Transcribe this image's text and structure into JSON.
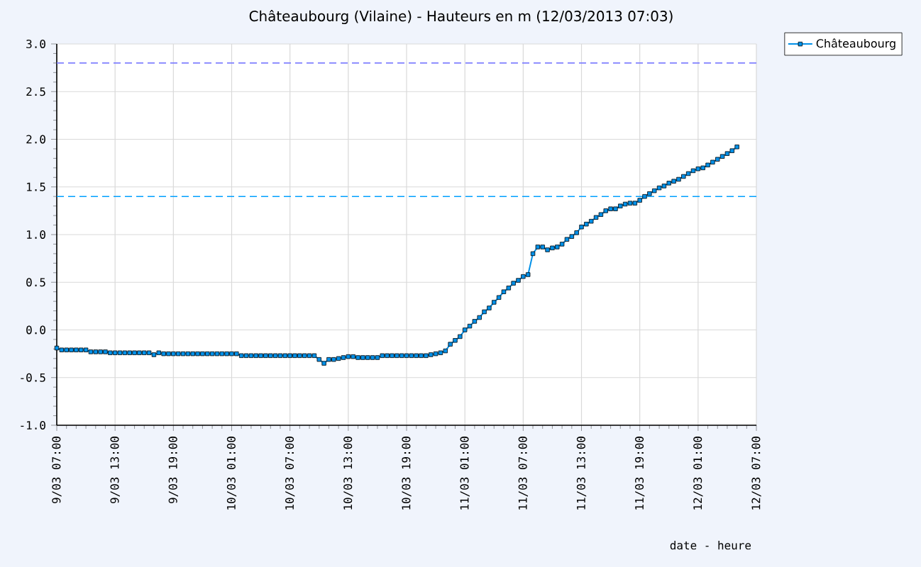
{
  "chart_data": {
    "type": "line",
    "title": "Châteaubourg (Vilaine) - Hauteurs en m (12/03/2013 07:03)",
    "xlabel": "date - heure",
    "x": [
      "2013-03-09T07:00",
      "2013-03-09T07:30",
      "2013-03-09T08:00",
      "2013-03-09T08:30",
      "2013-03-09T09:00",
      "2013-03-09T09:30",
      "2013-03-09T10:00",
      "2013-03-09T10:30",
      "2013-03-09T11:00",
      "2013-03-09T11:30",
      "2013-03-09T12:00",
      "2013-03-09T12:30",
      "2013-03-09T13:00",
      "2013-03-09T13:30",
      "2013-03-09T14:00",
      "2013-03-09T14:30",
      "2013-03-09T15:00",
      "2013-03-09T15:30",
      "2013-03-09T16:00",
      "2013-03-09T16:30",
      "2013-03-09T17:00",
      "2013-03-09T17:30",
      "2013-03-09T18:00",
      "2013-03-09T18:30",
      "2013-03-09T19:00",
      "2013-03-09T19:30",
      "2013-03-09T20:00",
      "2013-03-09T20:30",
      "2013-03-09T21:00",
      "2013-03-09T21:30",
      "2013-03-09T22:00",
      "2013-03-09T22:30",
      "2013-03-09T23:00",
      "2013-03-09T23:30",
      "2013-03-10T00:00",
      "2013-03-10T00:30",
      "2013-03-10T01:00",
      "2013-03-10T01:30",
      "2013-03-10T02:00",
      "2013-03-10T02:30",
      "2013-03-10T03:00",
      "2013-03-10T03:30",
      "2013-03-10T04:00",
      "2013-03-10T04:30",
      "2013-03-10T05:00",
      "2013-03-10T05:30",
      "2013-03-10T06:00",
      "2013-03-10T06:30",
      "2013-03-10T07:00",
      "2013-03-10T07:30",
      "2013-03-10T08:00",
      "2013-03-10T08:30",
      "2013-03-10T09:00",
      "2013-03-10T09:30",
      "2013-03-10T10:00",
      "2013-03-10T10:30",
      "2013-03-10T11:00",
      "2013-03-10T11:30",
      "2013-03-10T12:00",
      "2013-03-10T12:30",
      "2013-03-10T13:00",
      "2013-03-10T13:30",
      "2013-03-10T14:00",
      "2013-03-10T14:30",
      "2013-03-10T15:00",
      "2013-03-10T15:30",
      "2013-03-10T16:00",
      "2013-03-10T16:30",
      "2013-03-10T17:00",
      "2013-03-10T17:30",
      "2013-03-10T18:00",
      "2013-03-10T18:30",
      "2013-03-10T19:00",
      "2013-03-10T19:30",
      "2013-03-10T20:00",
      "2013-03-10T20:30",
      "2013-03-10T21:00",
      "2013-03-10T21:30",
      "2013-03-10T22:00",
      "2013-03-10T22:30",
      "2013-03-10T23:00",
      "2013-03-10T23:30",
      "2013-03-11T00:00",
      "2013-03-11T00:30",
      "2013-03-11T01:00",
      "2013-03-11T01:30",
      "2013-03-11T02:00",
      "2013-03-11T02:30",
      "2013-03-11T03:00",
      "2013-03-11T03:30",
      "2013-03-11T04:00",
      "2013-03-11T04:30",
      "2013-03-11T05:00",
      "2013-03-11T05:30",
      "2013-03-11T06:00",
      "2013-03-11T06:30",
      "2013-03-11T07:00",
      "2013-03-11T07:30",
      "2013-03-11T08:00",
      "2013-03-11T08:30",
      "2013-03-11T09:00",
      "2013-03-11T09:30",
      "2013-03-11T10:00",
      "2013-03-11T10:30",
      "2013-03-11T11:00",
      "2013-03-11T11:30",
      "2013-03-11T12:00",
      "2013-03-11T12:30",
      "2013-03-11T13:00",
      "2013-03-11T13:30",
      "2013-03-11T14:00",
      "2013-03-11T14:30",
      "2013-03-11T15:00",
      "2013-03-11T15:30",
      "2013-03-11T16:00",
      "2013-03-11T16:30",
      "2013-03-11T17:00",
      "2013-03-11T17:30",
      "2013-03-11T18:00",
      "2013-03-11T18:30",
      "2013-03-11T19:00",
      "2013-03-11T19:30",
      "2013-03-11T20:00",
      "2013-03-11T20:30",
      "2013-03-11T21:00",
      "2013-03-11T21:30",
      "2013-03-11T22:00",
      "2013-03-11T22:30",
      "2013-03-11T23:00",
      "2013-03-11T23:30",
      "2013-03-12T00:00",
      "2013-03-12T00:30",
      "2013-03-12T01:00",
      "2013-03-12T01:30",
      "2013-03-12T02:00",
      "2013-03-12T02:30",
      "2013-03-12T03:00",
      "2013-03-12T03:30",
      "2013-03-12T04:00",
      "2013-03-12T04:30",
      "2013-03-12T05:00"
    ],
    "series": [
      {
        "name": "Châteaubourg",
        "color": "#0090e8",
        "values": [
          -0.19,
          -0.21,
          -0.21,
          -0.21,
          -0.21,
          -0.21,
          -0.21,
          -0.23,
          -0.23,
          -0.23,
          -0.23,
          -0.24,
          -0.24,
          -0.24,
          -0.24,
          -0.24,
          -0.24,
          -0.24,
          -0.24,
          -0.24,
          -0.26,
          -0.24,
          -0.25,
          -0.25,
          -0.25,
          -0.25,
          -0.25,
          -0.25,
          -0.25,
          -0.25,
          -0.25,
          -0.25,
          -0.25,
          -0.25,
          -0.25,
          -0.25,
          -0.25,
          -0.25,
          -0.27,
          -0.27,
          -0.27,
          -0.27,
          -0.27,
          -0.27,
          -0.27,
          -0.27,
          -0.27,
          -0.27,
          -0.27,
          -0.27,
          -0.27,
          -0.27,
          -0.27,
          -0.27,
          -0.31,
          -0.35,
          -0.31,
          -0.31,
          -0.3,
          -0.29,
          -0.28,
          -0.28,
          -0.29,
          -0.29,
          -0.29,
          -0.29,
          -0.29,
          -0.27,
          -0.27,
          -0.27,
          -0.27,
          -0.27,
          -0.27,
          -0.27,
          -0.27,
          -0.27,
          -0.27,
          -0.26,
          -0.25,
          -0.24,
          -0.22,
          -0.15,
          -0.11,
          -0.07,
          0.0,
          0.04,
          0.09,
          0.13,
          0.19,
          0.23,
          0.29,
          0.34,
          0.4,
          0.44,
          0.49,
          0.52,
          0.56,
          0.58,
          0.8,
          0.87,
          0.87,
          0.84,
          0.86,
          0.87,
          0.9,
          0.95,
          0.98,
          1.02,
          1.08,
          1.11,
          1.14,
          1.18,
          1.21,
          1.25,
          1.27,
          1.27,
          1.3,
          1.32,
          1.33,
          1.33,
          1.36,
          1.4,
          1.43,
          1.46,
          1.49,
          1.51,
          1.54,
          1.56,
          1.58,
          1.61,
          1.64,
          1.67,
          1.69,
          1.7,
          1.73,
          1.76,
          1.79,
          1.82,
          1.85,
          1.88,
          1.92
        ]
      }
    ],
    "xlim": [
      "2013-03-09T07:00",
      "2013-03-12T07:00"
    ],
    "xticks": [
      {
        "value": "2013-03-09T07:00",
        "label": "9/03  07:00"
      },
      {
        "value": "2013-03-09T13:00",
        "label": "9/03  13:00"
      },
      {
        "value": "2013-03-09T19:00",
        "label": "9/03  19:00"
      },
      {
        "value": "2013-03-10T01:00",
        "label": "10/03  01:00"
      },
      {
        "value": "2013-03-10T07:00",
        "label": "10/03  07:00"
      },
      {
        "value": "2013-03-10T13:00",
        "label": "10/03  13:00"
      },
      {
        "value": "2013-03-10T19:00",
        "label": "10/03  19:00"
      },
      {
        "value": "2013-03-11T01:00",
        "label": "11/03  01:00"
      },
      {
        "value": "2013-03-11T07:00",
        "label": "11/03  07:00"
      },
      {
        "value": "2013-03-11T13:00",
        "label": "11/03  13:00"
      },
      {
        "value": "2013-03-11T19:00",
        "label": "11/03  19:00"
      },
      {
        "value": "2013-03-12T01:00",
        "label": "12/03  01:00"
      },
      {
        "value": "2013-03-12T07:00",
        "label": "12/03  07:00"
      }
    ],
    "ylim": [
      -1,
      3
    ],
    "yticks": [
      {
        "value": -1,
        "label": "-1.0"
      },
      {
        "value": -0.5,
        "label": "-0.5"
      },
      {
        "value": 0,
        "label": "0.0"
      },
      {
        "value": 0.5,
        "label": "0.5"
      },
      {
        "value": 1,
        "label": "1.0"
      },
      {
        "value": 1.5,
        "label": "1.5"
      },
      {
        "value": 2,
        "label": "2.0"
      },
      {
        "value": 2.5,
        "label": "2.5"
      },
      {
        "value": 3,
        "label": "3.0"
      }
    ],
    "ref_lines": [
      {
        "axis": "y",
        "value": 2.8,
        "color": "#8080ff",
        "line_style": "dashed"
      },
      {
        "axis": "y",
        "value": 1.4,
        "color": "#00a0ff",
        "line_style": "dashed"
      }
    ],
    "grid": true,
    "legend": "top right",
    "marker": "square",
    "line_style": "solid"
  }
}
